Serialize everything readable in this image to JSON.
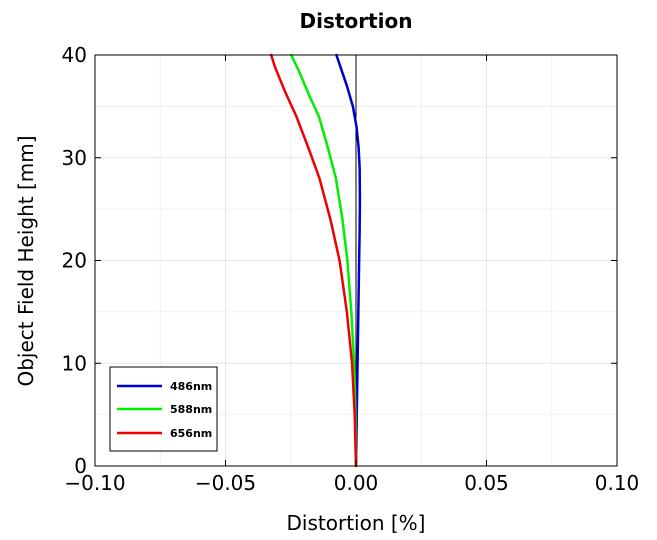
{
  "chart_data": {
    "type": "line",
    "title": "Distortion",
    "xlabel": "Distortion [%]",
    "ylabel": "Object Field Height [mm]",
    "xlim": [
      -0.1,
      0.1
    ],
    "ylim": [
      0,
      40
    ],
    "xticks": [
      -0.1,
      -0.05,
      0.0,
      0.05,
      0.1
    ],
    "xtick_labels": [
      "−0.10",
      "−0.05",
      "0.00",
      "0.05",
      "0.10"
    ],
    "yticks": [
      0,
      10,
      20,
      30,
      40
    ],
    "ytick_labels": [
      "0",
      "10",
      "20",
      "30",
      "40"
    ],
    "grid": true,
    "legend_position": "bottom-left",
    "series": [
      {
        "name": "486nm",
        "color": "#0000cc",
        "x": [
          0.0,
          0.0003,
          0.0006,
          0.0009,
          0.0012,
          0.0014,
          0.0015,
          0.0014,
          0.001,
          0.0002,
          -0.0012,
          -0.0035,
          -0.0075
        ],
        "y": [
          0,
          5,
          10,
          15,
          20,
          23,
          26,
          29,
          31,
          33,
          35,
          37,
          40
        ]
      },
      {
        "name": "588nm",
        "color": "#00ee00",
        "x": [
          0.0,
          -0.0002,
          -0.0007,
          -0.0018,
          -0.0033,
          -0.0052,
          -0.0077,
          -0.0108,
          -0.0142,
          -0.0178,
          -0.022,
          -0.0248
        ],
        "y": [
          0,
          5,
          10,
          15,
          20,
          24,
          28,
          31,
          34,
          36,
          38.5,
          40
        ]
      },
      {
        "name": "656nm",
        "color": "#ee0000",
        "x": [
          0.0,
          -0.0005,
          -0.0015,
          -0.0035,
          -0.0063,
          -0.0098,
          -0.014,
          -0.0183,
          -0.0228,
          -0.0273,
          -0.031,
          -0.0325
        ],
        "y": [
          0,
          5,
          10,
          15,
          20,
          24,
          28,
          31,
          34,
          36.5,
          38.8,
          40
        ]
      }
    ]
  }
}
